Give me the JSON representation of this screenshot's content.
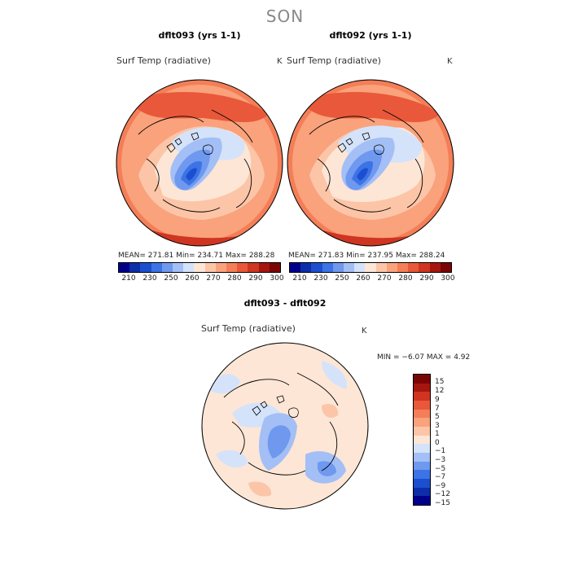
{
  "season": "SON",
  "colorbar_abs": {
    "colors": [
      "#00008b",
      "#0d2ea8",
      "#1b4fcf",
      "#3c73e6",
      "#6f98ef",
      "#a3bff5",
      "#d4e3fa",
      "#fde6d6",
      "#fcc5a8",
      "#f9a27c",
      "#f47e57",
      "#e9583a",
      "#cf3520",
      "#a5160f",
      "#7a0505"
    ],
    "ticks": [
      "210",
      "230",
      "250",
      "260",
      "270",
      "280",
      "290",
      "300"
    ]
  },
  "colorbar_diff": {
    "colors": [
      "#7a0505",
      "#a5160f",
      "#cf3520",
      "#e9583a",
      "#f47e57",
      "#f9a27c",
      "#fcc5a8",
      "#fde6d6",
      "#d4e3fa",
      "#a3bff5",
      "#6f98ef",
      "#3c73e6",
      "#1b4fcf",
      "#0d2ea8",
      "#00008b"
    ],
    "ticks": [
      "15",
      "12",
      "9",
      "7",
      "5",
      "3",
      "1",
      "0",
      "−1",
      "−3",
      "−5",
      "−7",
      "−9",
      "−12",
      "−15"
    ]
  },
  "panels": {
    "left": {
      "title": "dflt093 (yrs 1-1)",
      "variable": "Surf Temp (radiative)",
      "unit": "K",
      "stats": "MEAN= 271.81   Min= 234.71   Max= 288.28"
    },
    "right": {
      "title": "dflt092 (yrs 1-1)",
      "variable": "Surf Temp (radiative)",
      "unit": "K",
      "stats": "MEAN= 271.83   Min= 237.95   Max= 288.24"
    },
    "diff": {
      "title": "dflt093 - dflt092",
      "variable": "Surf Temp (radiative)",
      "unit": "K",
      "stats": "MIN =   −6.07 MAX =    4.92"
    }
  }
}
